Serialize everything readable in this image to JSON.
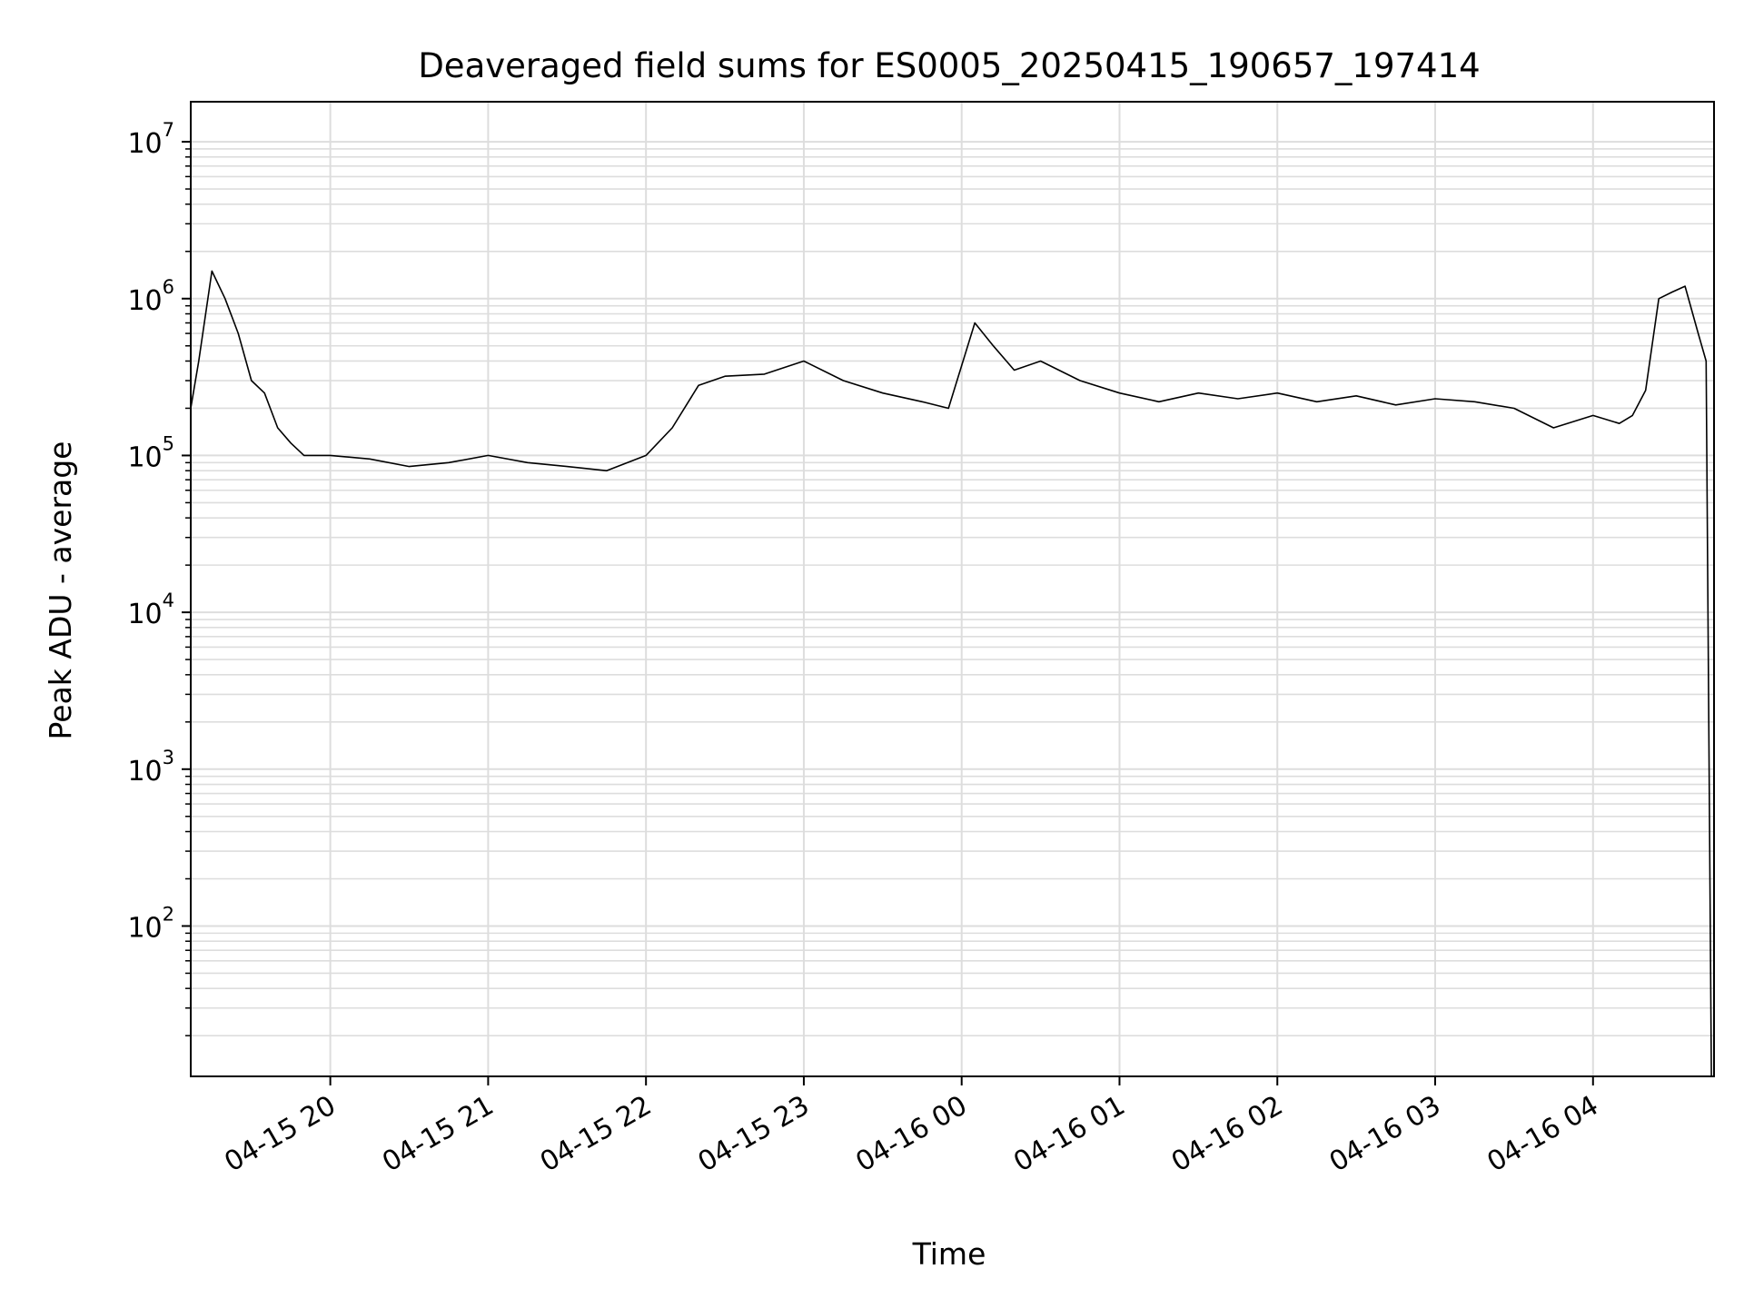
{
  "chart_data": {
    "type": "line",
    "title": "Deaveraged field sums for ES0005_20250415_190657_197414",
    "xlabel": "Time",
    "ylabel": "Peak ADU - average",
    "x_scale": "time",
    "y_scale": "log",
    "ylim": [
      11,
      18000000
    ],
    "xlim": [
      "2025-04-15 19:06:57",
      "2025-04-16 04:46:00"
    ],
    "y_tick_exponents": [
      2,
      3,
      4,
      5,
      6,
      7
    ],
    "x_ticks": [
      {
        "t": "2025-04-15 20:00",
        "label": "04-15 20"
      },
      {
        "t": "2025-04-15 21:00",
        "label": "04-15 21"
      },
      {
        "t": "2025-04-15 22:00",
        "label": "04-15 22"
      },
      {
        "t": "2025-04-15 23:00",
        "label": "04-15 23"
      },
      {
        "t": "2025-04-16 00:00",
        "label": "04-16 00"
      },
      {
        "t": "2025-04-16 01:00",
        "label": "04-16 01"
      },
      {
        "t": "2025-04-16 02:00",
        "label": "04-16 02"
      },
      {
        "t": "2025-04-16 03:00",
        "label": "04-16 03"
      },
      {
        "t": "2025-04-16 04:00",
        "label": "04-16 04"
      }
    ],
    "grid": true,
    "line_color": "#000000",
    "series": [
      {
        "x": [
          "2025-04-15 19:06:57",
          "2025-04-15 19:10",
          "2025-04-15 19:15",
          "2025-04-15 19:20",
          "2025-04-15 19:25",
          "2025-04-15 19:30",
          "2025-04-15 19:35",
          "2025-04-15 19:40",
          "2025-04-15 19:45",
          "2025-04-15 19:50",
          "2025-04-15 20:00",
          "2025-04-15 20:15",
          "2025-04-15 20:30",
          "2025-04-15 20:45",
          "2025-04-15 21:00",
          "2025-04-15 21:15",
          "2025-04-15 21:30",
          "2025-04-15 21:45",
          "2025-04-15 22:00",
          "2025-04-15 22:10",
          "2025-04-15 22:20",
          "2025-04-15 22:30",
          "2025-04-15 22:45",
          "2025-04-15 23:00",
          "2025-04-15 23:15",
          "2025-04-15 23:30",
          "2025-04-15 23:45",
          "2025-04-15 23:55",
          "2025-04-16 00:05",
          "2025-04-16 00:12",
          "2025-04-16 00:20",
          "2025-04-16 00:30",
          "2025-04-16 00:45",
          "2025-04-16 01:00",
          "2025-04-16 01:15",
          "2025-04-16 01:30",
          "2025-04-16 01:45",
          "2025-04-16 02:00",
          "2025-04-16 02:15",
          "2025-04-16 02:30",
          "2025-04-16 02:45",
          "2025-04-16 03:00",
          "2025-04-16 03:15",
          "2025-04-16 03:30",
          "2025-04-16 03:45",
          "2025-04-16 04:00",
          "2025-04-16 04:10",
          "2025-04-16 04:15",
          "2025-04-16 04:20",
          "2025-04-16 04:25",
          "2025-04-16 04:30",
          "2025-04-16 04:35",
          "2025-04-16 04:40",
          "2025-04-16 04:43",
          "2025-04-16 04:45"
        ],
        "y": [
          200000,
          400000,
          1500000,
          1000000,
          600000,
          300000,
          250000,
          150000,
          120000,
          100000,
          100000,
          95000,
          85000,
          90000,
          100000,
          90000,
          85000,
          80000,
          100000,
          150000,
          280000,
          320000,
          330000,
          400000,
          300000,
          250000,
          220000,
          200000,
          700000,
          500000,
          350000,
          400000,
          300000,
          250000,
          220000,
          250000,
          230000,
          250000,
          220000,
          240000,
          210000,
          230000,
          220000,
          200000,
          150000,
          180000,
          160000,
          180000,
          260000,
          1000000,
          1100000,
          1200000,
          600000,
          400000,
          11
        ]
      }
    ]
  }
}
